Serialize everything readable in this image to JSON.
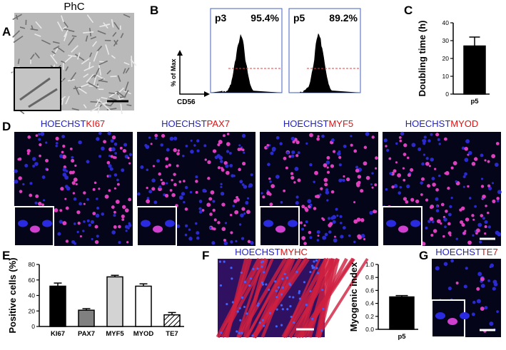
{
  "panels": {
    "letters": [
      "A",
      "B",
      "C",
      "D",
      "E",
      "F",
      "G"
    ],
    "a": {
      "label": "PhC"
    },
    "b": {
      "ylabel": "% of Max",
      "xlabel": "CD56",
      "plots": [
        {
          "name": "p3",
          "percent": "95.4%"
        },
        {
          "name": "p5",
          "percent": "89.2%"
        }
      ]
    },
    "d": [
      {
        "stain": "HOECHST",
        "marker": "KI67"
      },
      {
        "stain": "HOECHST",
        "marker": "PAX7"
      },
      {
        "stain": "HOECHST",
        "marker": "MYF5"
      },
      {
        "stain": "HOECHST",
        "marker": "MYOD"
      }
    ],
    "f": {
      "stain": "HOECHST",
      "marker": "MYHC"
    },
    "g": {
      "stain": "HOECHST",
      "marker": "TE7"
    }
  },
  "chart_data": [
    {
      "type": "bar",
      "ylabel": "Doubling time (h)",
      "categories": [
        "p5"
      ],
      "values": [
        27
      ],
      "errors": [
        5
      ],
      "colors": [
        "#000000"
      ],
      "ylim": [
        0,
        40
      ],
      "yticks": [
        0,
        10,
        20,
        30,
        40
      ]
    },
    {
      "type": "bar",
      "ylabel": "Positive cells (%)",
      "categories": [
        "KI67",
        "PAX7",
        "MYF5",
        "MYOD",
        "TE7"
      ],
      "values": [
        52,
        21,
        64,
        52,
        15
      ],
      "errors": [
        4,
        2,
        2,
        3,
        3
      ],
      "colors": [
        "#000000",
        "#808080",
        "#d3d3d3",
        "#ffffff",
        "#ffffff"
      ],
      "hatch": [
        false,
        false,
        false,
        false,
        true
      ],
      "ylim": [
        0,
        80
      ],
      "yticks": [
        0,
        20,
        40,
        60,
        80
      ]
    },
    {
      "type": "bar",
      "ylabel": "Myogenic index",
      "categories": [
        "p5"
      ],
      "values": [
        0.5
      ],
      "errors": [
        0.02
      ],
      "colors": [
        "#000000"
      ],
      "ylim": [
        0,
        1
      ],
      "yticks": [
        {
          "value": 0,
          "label": "0.0"
        },
        0.2,
        0.4,
        0.6,
        0.8,
        {
          "value": 1,
          "label": "1.0"
        }
      ]
    }
  ]
}
